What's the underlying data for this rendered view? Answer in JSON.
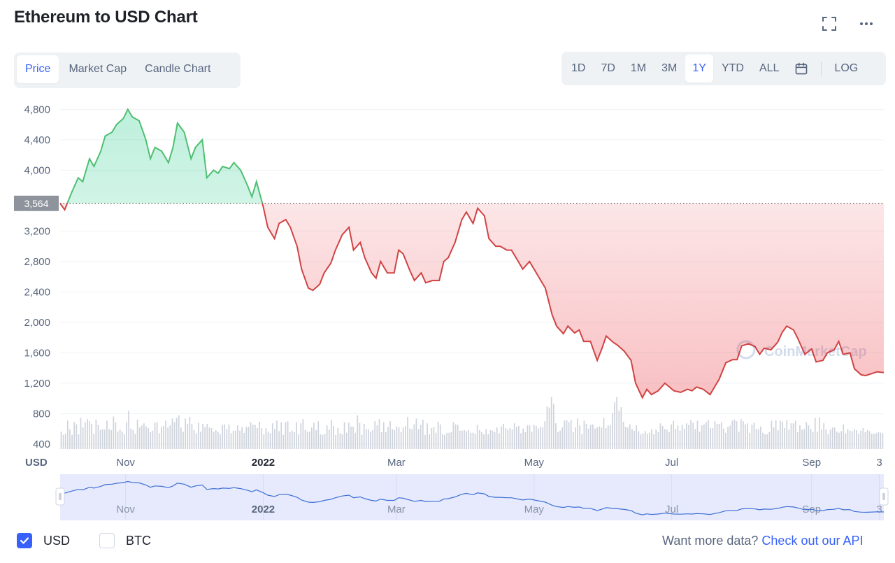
{
  "page": {
    "title": "Ethereum to USD Chart"
  },
  "type_tabs": [
    {
      "label": "Price",
      "active": true
    },
    {
      "label": "Market Cap",
      "active": false
    },
    {
      "label": "Candle Chart",
      "active": false
    }
  ],
  "range_tabs": [
    {
      "label": "1D",
      "active": false
    },
    {
      "label": "7D",
      "active": false
    },
    {
      "label": "1M",
      "active": false
    },
    {
      "label": "3M",
      "active": false
    },
    {
      "label": "1Y",
      "active": true
    },
    {
      "label": "YTD",
      "active": false
    },
    {
      "label": "ALL",
      "active": false
    }
  ],
  "log_label": "LOG",
  "icons": {
    "expand": "expand-icon",
    "more": "more-horizontal-icon",
    "calendar": "calendar-icon",
    "check": "check-icon"
  },
  "colors": {
    "up": "#16c784",
    "up_line": "#4fbf71",
    "down": "#d04343",
    "accent": "#3861fb",
    "muted": "#58667e",
    "volume": "#cfd3dc",
    "navigator_fill": "#e6eafc",
    "navigator_line": "#3f6fd6"
  },
  "watermark": "CoinMarketCap",
  "footer": {
    "usd_label": "USD",
    "btc_label": "BTC",
    "usd_checked": true,
    "btc_checked": false,
    "api_prompt": "Want more data?",
    "api_link": "Check out our API"
  },
  "chart_data": {
    "type": "area",
    "title": "Ethereum to USD Chart",
    "ylabel": "USD",
    "ylim": [
      280,
      4950
    ],
    "yticks": [
      400,
      800,
      1200,
      1600,
      2000,
      2400,
      2800,
      3200,
      4000,
      4400,
      4800
    ],
    "ytick_labels": [
      "400",
      "800",
      "1,200",
      "1,600",
      "2,000",
      "2,400",
      "2,800",
      "3,200",
      "4,000",
      "4,400",
      "4,800"
    ],
    "baseline": {
      "value": 3564,
      "label": "3,564"
    },
    "x_domain": [
      0,
      365
    ],
    "x_ticks": [
      {
        "day": 29,
        "label": "Nov",
        "bold": false
      },
      {
        "day": 90,
        "label": "2022",
        "bold": true
      },
      {
        "day": 149,
        "label": "Mar",
        "bold": false
      },
      {
        "day": 210,
        "label": "May",
        "bold": false
      },
      {
        "day": 271,
        "label": "Jul",
        "bold": false
      },
      {
        "day": 333,
        "label": "Sep",
        "bold": false
      },
      {
        "day": 363,
        "label": "3",
        "bold": false
      }
    ],
    "price_series": {
      "name": "Price",
      "x": [
        0,
        2,
        5,
        8,
        10,
        13,
        15,
        18,
        20,
        23,
        25,
        28,
        30,
        32,
        35,
        38,
        40,
        42,
        45,
        48,
        50,
        52,
        55,
        58,
        60,
        63,
        65,
        68,
        70,
        72,
        75,
        77,
        80,
        83,
        85,
        87,
        90,
        92,
        95,
        97,
        100,
        102,
        105,
        107,
        110,
        112,
        115,
        117,
        120,
        122,
        125,
        128,
        130,
        133,
        135,
        138,
        140,
        142,
        145,
        148,
        150,
        152,
        155,
        157,
        160,
        162,
        165,
        168,
        170,
        172,
        175,
        178,
        180,
        183,
        185,
        188,
        190,
        193,
        195,
        198,
        200,
        203,
        205,
        208,
        210,
        212,
        215,
        218,
        220,
        223,
        225,
        228,
        230,
        232,
        235,
        238,
        240,
        242,
        245,
        247,
        250,
        253,
        255,
        258,
        260,
        262,
        265,
        268,
        270,
        272,
        275,
        278,
        280,
        282,
        285,
        288,
        290,
        292,
        295,
        298,
        300,
        302,
        305,
        308,
        310,
        312,
        315,
        318,
        320,
        322,
        325,
        327,
        330,
        333,
        335,
        338,
        340,
        343,
        345,
        347,
        350,
        352,
        355,
        357,
        360,
        362,
        365
      ],
      "y": [
        3564,
        3480,
        3700,
        3900,
        3850,
        4150,
        4050,
        4250,
        4450,
        4500,
        4600,
        4680,
        4800,
        4700,
        4650,
        4400,
        4150,
        4300,
        4250,
        4100,
        4300,
        4620,
        4500,
        4150,
        4300,
        4400,
        3900,
        4000,
        3960,
        4050,
        4020,
        4100,
        4000,
        3800,
        3650,
        3850,
        3520,
        3250,
        3100,
        3300,
        3350,
        3250,
        3000,
        2700,
        2450,
        2420,
        2500,
        2650,
        2780,
        2950,
        3150,
        3250,
        2950,
        3050,
        2850,
        2650,
        2580,
        2800,
        2650,
        2650,
        2950,
        2900,
        2680,
        2550,
        2650,
        2520,
        2550,
        2550,
        2800,
        2850,
        3050,
        3350,
        3450,
        3300,
        3500,
        3400,
        3100,
        3000,
        3000,
        2950,
        2950,
        2800,
        2700,
        2800,
        2700,
        2600,
        2450,
        2100,
        1950,
        1850,
        1950,
        1860,
        1900,
        1750,
        1750,
        1500,
        1650,
        1820,
        1740,
        1700,
        1620,
        1500,
        1200,
        1010,
        1120,
        1050,
        1100,
        1200,
        1150,
        1100,
        1080,
        1120,
        1100,
        1150,
        1120,
        1050,
        1150,
        1250,
        1470,
        1510,
        1510,
        1690,
        1720,
        1680,
        1580,
        1660,
        1640,
        1740,
        1870,
        1950,
        1900,
        1780,
        1580,
        1650,
        1480,
        1500,
        1600,
        1640,
        1750,
        1580,
        1600,
        1390,
        1310,
        1300,
        1330,
        1350,
        1340
      ]
    },
    "volume_series": {
      "name": "Volume",
      "unit": "relative",
      "values": [
        0.33,
        0.27,
        0.29,
        0.54,
        0.37,
        0.27,
        0.51,
        0.47,
        0.28,
        0.59,
        0.41,
        0.51,
        0.57,
        0.53,
        0.48,
        0.29,
        0.56,
        0.46,
        0.36,
        0.38,
        0.37,
        0.54,
        0.38,
        0.36,
        0.62,
        0.51,
        0.33,
        0.37,
        0.33,
        0.28,
        0.51,
        0.73,
        0.39,
        0.36,
        0.29,
        0.56,
        0.41,
        0.45,
        0.49,
        0.43,
        0.4,
        0.32,
        0.35,
        0.5,
        0.51,
        0.3,
        0.42,
        0.44,
        0.54,
        0.41,
        0.45,
        0.58,
        0.51,
        0.59,
        0.64,
        0.41,
        0.33,
        0.58,
        0.48,
        0.61,
        0.48,
        0.36,
        0.3,
        0.5,
        0.33,
        0.48,
        0.42,
        0.48,
        0.41,
        0.4,
        0.33,
        0.36,
        0.33,
        0.28,
        0.46,
        0.47,
        0.38,
        0.47,
        0.3,
        0.35,
        0.35,
        0.45,
        0.35,
        0.42,
        0.31,
        0.42,
        0.42,
        0.51,
        0.46,
        0.46,
        0.4,
        0.52,
        0.4,
        0.28,
        0.4,
        0.33,
        0.3,
        0.49,
        0.38,
        0.54,
        0.34,
        0.51,
        0.27,
        0.51,
        0.53,
        0.32,
        0.35,
        0.32,
        0.51,
        0.28,
        0.49,
        0.57,
        0.36,
        0.33,
        0.33,
        0.41,
        0.5,
        0.36,
        0.53,
        0.28,
        0.27,
        0.29,
        0.45,
        0.37,
        0.56,
        0.44,
        0.27,
        0.4,
        0.3,
        0.28,
        0.51,
        0.31,
        0.5,
        0.43,
        0.43,
        0.31,
        0.64,
        0.5,
        0.27,
        0.48,
        0.38,
        0.38,
        0.33,
        0.36,
        0.53,
        0.45,
        0.57,
        0.32,
        0.51,
        0.32,
        0.42,
        0.53,
        0.38,
        0.36,
        0.43,
        0.41,
        0.32,
        0.41,
        0.44,
        0.61,
        0.39,
        0.38,
        0.47,
        0.58,
        0.38,
        0.46,
        0.56,
        0.27,
        0.49,
        0.28,
        0.4,
        0.42,
        0.31,
        0.52,
        0.47,
        0.28,
        0.27,
        0.31,
        0.31,
        0.32,
        0.51,
        0.47,
        0.46,
        0.35,
        0.35,
        0.36,
        0.34,
        0.36,
        0.31,
        0.31,
        0.29,
        0.46,
        0.36,
        0.32,
        0.28,
        0.38,
        0.28,
        0.36,
        0.35,
        0.32,
        0.41,
        0.3,
        0.43,
        0.48,
        0.4,
        0.37,
        0.4,
        0.37,
        0.49,
        0.42,
        0.44,
        0.3,
        0.39,
        0.32,
        0.45,
        0.45,
        0.33,
        0.46,
        0.44,
        0.39,
        0.42,
        0.41,
        0.53,
        0.81,
        0.79,
        0.99,
        0.86,
        0.49,
        0.32,
        0.35,
        0.41,
        0.54,
        0.55,
        0.51,
        0.55,
        0.32,
        0.41,
        0.58,
        0.45,
        0.28,
        0.54,
        0.48,
        0.39,
        0.46,
        0.47,
        0.39,
        0.41,
        0.43,
        0.41,
        0.59,
        0.4,
        0.45,
        0.45,
        0.68,
        0.89,
        0.99,
        0.73,
        0.8,
        0.52,
        0.42,
        0.41,
        0.47,
        0.38,
        0.35,
        0.45,
        0.34,
        0.28,
        0.3,
        0.34,
        0.29,
        0.31,
        0.38,
        0.28,
        0.37,
        0.32,
        0.49,
        0.44,
        0.38,
        0.37,
        0.32,
        0.47,
        0.54,
        0.38,
        0.45,
        0.35,
        0.46,
        0.39,
        0.49,
        0.46,
        0.55,
        0.5,
        0.38,
        0.54,
        0.33,
        0.45,
        0.47,
        0.51,
        0.55,
        0.4,
        0.4,
        0.53,
        0.48,
        0.48,
        0.51,
        0.39,
        0.31,
        0.42,
        0.45,
        0.54,
        0.56,
        0.53,
        0.33,
        0.57,
        0.53,
        0.47,
        0.49,
        0.31,
        0.46,
        0.5,
        0.38,
        0.38,
        0.43,
        0.31,
        0.28,
        0.28,
        0.32,
        0.54,
        0.41,
        0.55,
        0.36,
        0.54,
        0.52,
        0.4,
        0.55,
        0.37,
        0.49,
        0.49,
        0.54,
        0.32,
        0.45,
        0.37,
        0.38,
        0.51,
        0.45,
        0.38,
        0.32,
        0.59,
        0.33,
        0.6,
        0.37,
        0.49,
        0.37,
        0.28,
        0.37,
        0.41,
        0.41,
        0.33,
        0.31,
        0.34,
        0.47,
        0.3,
        0.38,
        0.35,
        0.34,
        0.38,
        0.36,
        0.29,
        0.35,
        0.4,
        0.32,
        0.36,
        0.34,
        0.29,
        0.29,
        0.3,
        0.32,
        0.31,
        0.3
      ]
    }
  }
}
